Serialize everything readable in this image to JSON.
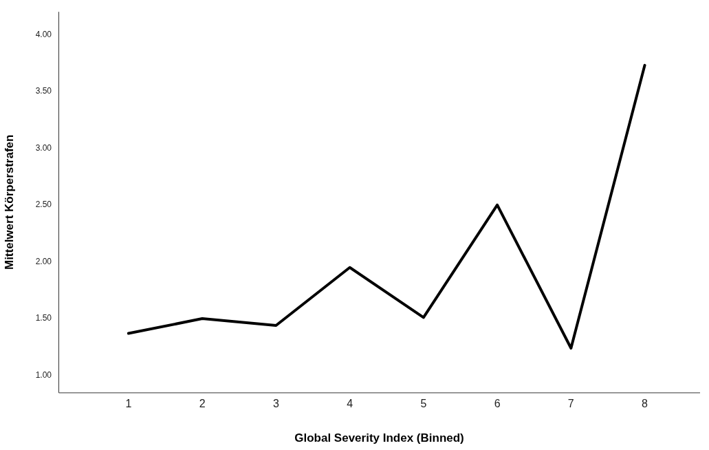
{
  "chart_data": {
    "type": "line",
    "xlabel": "Global Severity Index (Binned)",
    "ylabel": "Mittelwert Körperstrafen",
    "x": [
      1,
      2,
      3,
      4,
      5,
      6,
      7,
      8
    ],
    "series": [
      {
        "color": "#000000",
        "values": [
          1.37,
          1.5,
          1.44,
          1.95,
          1.51,
          2.5,
          1.24,
          3.73
        ]
      }
    ],
    "xlim": [
      0.05,
      8.75
    ],
    "xticks": [
      1,
      2,
      3,
      4,
      5,
      6,
      7,
      8
    ],
    "ylim": [
      0.85,
      4.2
    ],
    "yticks": [
      {
        "value": 1,
        "label": "1.00"
      },
      {
        "value": 1.5,
        "label": "1.50"
      },
      {
        "value": 2,
        "label": "2.00"
      },
      {
        "value": 2.5,
        "label": "2.50"
      },
      {
        "value": 3,
        "label": "3.00"
      },
      {
        "value": 3.5,
        "label": "3.50"
      },
      {
        "value": 4,
        "label": "4.00"
      }
    ],
    "grid": false,
    "legend": false,
    "marker": "none",
    "line_style": "solid"
  }
}
